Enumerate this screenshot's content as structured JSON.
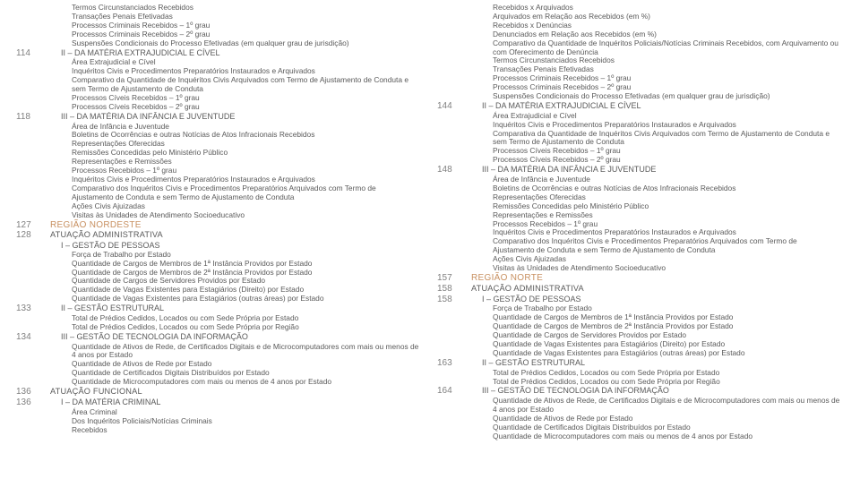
{
  "col1": [
    {
      "pg": "",
      "cls": "txt i2",
      "t": "Termos Circunstanciados Recebidos"
    },
    {
      "pg": "",
      "cls": "txt i2",
      "t": "Transações Penais Efetivadas"
    },
    {
      "pg": "",
      "cls": "txt i2",
      "t": "Processos Criminais Recebidos – 1º grau"
    },
    {
      "pg": "",
      "cls": "txt i2",
      "t": "Processos Criminais Recebidos – 2º grau"
    },
    {
      "pg": "",
      "cls": "txt i2",
      "t": "Suspensões Condicionais do Processo Efetivadas (em qualquer grau de jurisdição)"
    },
    {
      "pg": "114",
      "cls": "sub i1",
      "t": "II – DA MATÉRIA EXTRAJUDICIAL E CÍVEL"
    },
    {
      "pg": "",
      "cls": "txt i2",
      "t": "Área Extrajudicial e Cível"
    },
    {
      "pg": "",
      "cls": "txt i2",
      "t": "Inquéritos Civis e Procedimentos Preparatórios Instaurados e Arquivados"
    },
    {
      "pg": "",
      "cls": "txt i2",
      "t": "Comparativo da Quantidade de Inquéritos Civis Arquivados com Termo de Ajustamento de Conduta e sem Termo de Ajustamento de Conduta"
    },
    {
      "pg": "",
      "cls": "txt i2",
      "t": "Processos Cíveis Recebidos – 1º grau"
    },
    {
      "pg": "",
      "cls": "txt i2",
      "t": "Processos Cíveis Recebidos – 2º grau"
    },
    {
      "pg": "118",
      "cls": "sub i1",
      "t": "III – DA MATÉRIA DA INFÂNCIA E JUVENTUDE"
    },
    {
      "pg": "",
      "cls": "txt i2",
      "t": "Área de Infância e Juventude"
    },
    {
      "pg": "",
      "cls": "txt i2",
      "t": "Boletins de Ocorrências e outras Notícias de Atos Infracionais Recebidos"
    },
    {
      "pg": "",
      "cls": "txt i2",
      "t": "Representações Oferecidas"
    },
    {
      "pg": "",
      "cls": "txt i2",
      "t": "Remissões Concedidas pelo Ministério Público"
    },
    {
      "pg": "",
      "cls": "txt i2",
      "t": "Representações e Remissões"
    },
    {
      "pg": "",
      "cls": "txt i2",
      "t": "Processos Recebidos – 1º grau"
    },
    {
      "pg": "",
      "cls": "txt i2",
      "t": "Inquéritos Civis e Procedimentos Preparatórios Instaurados e Arquivados"
    },
    {
      "pg": "",
      "cls": "txt i2",
      "t": "Comparativo dos Inquéritos Civis e Procedimentos Preparatórios Arquivados com Termo de Ajustamento de Conduta e sem Termo de Ajustamento de Conduta"
    },
    {
      "pg": "",
      "cls": "txt i2",
      "t": "Ações Civis Ajuizadas"
    },
    {
      "pg": "",
      "cls": "txt i2",
      "t": "Visitas às Unidades de Atendimento Socioeducativo"
    },
    {
      "pg": "127",
      "cls": "region i0",
      "t": "REGIÃO NORDESTE"
    },
    {
      "pg": "128",
      "cls": "sec i0",
      "t": "ATUAÇÃO ADMINISTRATIVA"
    },
    {
      "pg": "",
      "cls": "sub i1",
      "t": "I – GESTÃO DE PESSOAS"
    },
    {
      "pg": "",
      "cls": "txt i2",
      "t": "Força de Trabalho por Estado"
    },
    {
      "pg": "",
      "cls": "txt i2",
      "t": "Quantidade de Cargos de Membros de 1ª Instância Providos por Estado"
    },
    {
      "pg": "",
      "cls": "txt i2",
      "t": "Quantidade de Cargos de Membros de 2ª Instância Providos por Estado"
    },
    {
      "pg": "",
      "cls": "txt i2",
      "t": "Quantidade de Cargos de Servidores Providos por Estado"
    },
    {
      "pg": "",
      "cls": "txt i2",
      "t": "Quantidade de Vagas Existentes para Estagiários (Direito) por Estado"
    },
    {
      "pg": "",
      "cls": "txt i2",
      "t": "Quantidade de Vagas Existentes para Estagiários (outras áreas) por Estado"
    },
    {
      "pg": "133",
      "cls": "sub i1",
      "t": "II – GESTÃO ESTRUTURAL"
    },
    {
      "pg": "",
      "cls": "txt i2",
      "t": "Total de Prédios Cedidos, Locados ou com Sede Própria por Estado"
    },
    {
      "pg": "",
      "cls": "txt i2",
      "t": "Total de Prédios Cedidos, Locados ou com Sede Própria por Região"
    },
    {
      "pg": "134",
      "cls": "sub i1",
      "t": "III – GESTÃO DE TECNOLOGIA DA INFORMAÇÃO"
    },
    {
      "pg": "",
      "cls": "txt i2",
      "t": "Quantidade de Ativos de Rede, de Certificados Digitais e de Microcomputadores com mais ou menos de 4 anos por Estado"
    },
    {
      "pg": "",
      "cls": "txt i2",
      "t": "Quantidade de Ativos de Rede por Estado"
    },
    {
      "pg": "",
      "cls": "txt i2",
      "t": "Quantidade de Certificados Digitais Distribuídos por Estado"
    },
    {
      "pg": "",
      "cls": "txt i2",
      "t": "Quantidade de Microcomputadores com mais ou menos de 4 anos por Estado"
    },
    {
      "pg": "136",
      "cls": "sec i0",
      "t": "ATUAÇÃO FUNCIONAL"
    },
    {
      "pg": "136",
      "cls": "sub i1",
      "t": "I – DA MATÉRIA CRIMINAL"
    },
    {
      "pg": "",
      "cls": "txt i2",
      "t": "Área Criminal"
    },
    {
      "pg": "",
      "cls": "txt i2",
      "t": "Dos Inquéritos Policiais/Notícias Criminais"
    },
    {
      "pg": "",
      "cls": "txt i2",
      "t": "Recebidos"
    }
  ],
  "col2": [
    {
      "pg": "",
      "cls": "txt i2",
      "t": "Recebidos x Arquivados"
    },
    {
      "pg": "",
      "cls": "txt i2",
      "t": "Arquivados em Relação aos Recebidos (em %)"
    },
    {
      "pg": "",
      "cls": "txt i2",
      "t": "Recebidos x Denúncias"
    },
    {
      "pg": "",
      "cls": "txt i2",
      "t": "Denunciados em Relação aos Recebidos (em %)"
    },
    {
      "pg": "",
      "cls": "txt i2",
      "t": "Comparativo da Quantidade de Inquéritos Policiais/Notícias Criminais Recebidos, com Arquivamento ou com Oferecimento de Denúncia"
    },
    {
      "pg": "",
      "cls": "txt i2",
      "t": "Termos Circunstanciados Recebidos"
    },
    {
      "pg": "",
      "cls": "txt i2",
      "t": "Transações Penais Efetivadas"
    },
    {
      "pg": "",
      "cls": "txt i2",
      "t": "Processos Criminais Recebidos – 1º grau"
    },
    {
      "pg": "",
      "cls": "txt i2",
      "t": "Processos Criminais Recebidos – 2º grau"
    },
    {
      "pg": "",
      "cls": "txt i2",
      "t": "Suspensões Condicionais do Processo Efetivadas (em qualquer grau de jurisdição)"
    },
    {
      "pg": "144",
      "cls": "sub i1",
      "t": "II – DA MATÉRIA EXTRAJUDICIAL E CÍVEL"
    },
    {
      "pg": "",
      "cls": "txt i2",
      "t": "Área Extrajudicial e Cível"
    },
    {
      "pg": "",
      "cls": "txt i2",
      "t": "Inquéritos Civis e Procedimentos Preparatórios Instaurados e Arquivados"
    },
    {
      "pg": "",
      "cls": "txt i2",
      "t": "Comparativa da Quantidade de Inquéritos Civis Arquivados com Termo de Ajustamento de Conduta e sem Termo de Ajustamento de Conduta"
    },
    {
      "pg": "",
      "cls": "txt i2",
      "t": "Processos Cíveis Recebidos – 1º grau"
    },
    {
      "pg": "",
      "cls": "txt i2",
      "t": "Processos Cíveis Recebidos – 2º grau"
    },
    {
      "pg": "148",
      "cls": "sub i1",
      "t": "III – DA MATÉRIA DA INFÂNCIA E JUVENTUDE"
    },
    {
      "pg": "",
      "cls": "txt i2",
      "t": "Área de Infância e Juventude"
    },
    {
      "pg": "",
      "cls": "txt i2",
      "t": "Boletins de Ocorrências e outras Notícias de Atos Infracionais Recebidos"
    },
    {
      "pg": "",
      "cls": "txt i2",
      "t": "Representações Oferecidas"
    },
    {
      "pg": "",
      "cls": "txt i2",
      "t": "Remissões Concedidas pelo Ministério Público"
    },
    {
      "pg": "",
      "cls": "txt i2",
      "t": "Representações e Remissões"
    },
    {
      "pg": "",
      "cls": "txt i2",
      "t": "Processos Recebidos – 1º grau"
    },
    {
      "pg": "",
      "cls": "txt i2",
      "t": "Inquéritos Civis e Procedimentos Preparatórios Instaurados e Arquivados"
    },
    {
      "pg": "",
      "cls": "txt i2",
      "t": "Comparativo dos Inquéritos Civis e Procedimentos Preparatórios Arquivados com Termo de Ajustamento de Conduta e sem Termo de Ajustamento de Conduta"
    },
    {
      "pg": "",
      "cls": "txt i2",
      "t": "Ações Civis Ajuizadas"
    },
    {
      "pg": "",
      "cls": "txt i2",
      "t": "Visitas às Unidades de Atendimento Socioeducativo"
    },
    {
      "pg": "157",
      "cls": "region i0",
      "t": "REGIÃO NORTE"
    },
    {
      "pg": "158",
      "cls": "sec i0",
      "t": "ATUAÇÃO ADMINISTRATIVA"
    },
    {
      "pg": "158",
      "cls": "sub i1",
      "t": "I – GESTÃO DE PESSOAS"
    },
    {
      "pg": "",
      "cls": "txt i2",
      "t": "Força de Trabalho por Estado"
    },
    {
      "pg": "",
      "cls": "txt i2",
      "t": "Quantidade de Cargos de Membros de 1ª Instância Providos por Estado"
    },
    {
      "pg": "",
      "cls": "txt i2",
      "t": "Quantidade de Cargos de Membros de 2ª Instância Providos por Estado"
    },
    {
      "pg": "",
      "cls": "txt i2",
      "t": "Quantidade de Cargos de Servidores Providos por Estado"
    },
    {
      "pg": "",
      "cls": "txt i2",
      "t": "Quantidade de Vagas Existentes para Estagiários (Direito) por Estado"
    },
    {
      "pg": "",
      "cls": "txt i2",
      "t": "Quantidade de Vagas Existentes para Estagiários (outras áreas) por Estado"
    },
    {
      "pg": "163",
      "cls": "sub i1",
      "t": "II – GESTÃO ESTRUTURAL"
    },
    {
      "pg": "",
      "cls": "txt i2",
      "t": "Total de Prédios Cedidos, Locados ou com Sede Própria por Estado"
    },
    {
      "pg": "",
      "cls": "txt i2",
      "t": "Total de Prédios Cedidos, Locados ou com Sede Própria por Região"
    },
    {
      "pg": "164",
      "cls": "sub i1",
      "t": "III – GESTÃO DE TECNOLOGIA DA INFORMAÇÃO"
    },
    {
      "pg": "",
      "cls": "txt i2",
      "t": "Quantidade de Ativos de Rede, de Certificados Digitais e de Microcomputadores com mais ou menos de 4 anos por Estado"
    },
    {
      "pg": "",
      "cls": "txt i2",
      "t": "Quantidade de Ativos de Rede por Estado"
    },
    {
      "pg": "",
      "cls": "txt i2",
      "t": "Quantidade de Certificados Digitais Distribuídos por Estado"
    },
    {
      "pg": "",
      "cls": "txt i2",
      "t": "Quantidade de Microcomputadores com mais ou menos de 4 anos por Estado"
    }
  ]
}
